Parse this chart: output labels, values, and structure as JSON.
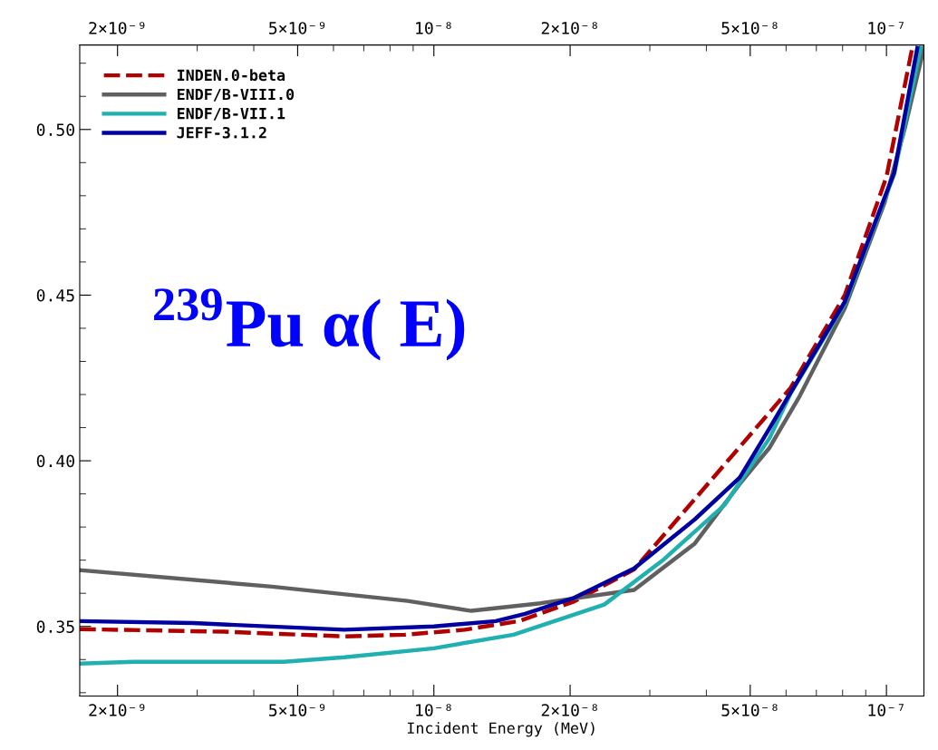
{
  "chart_data": {
    "type": "line",
    "xlabel": "Incident Energy (MeV)",
    "annotations": [
      "$^{239}$Pu α( E)"
    ],
    "log": "x",
    "grid": false,
    "legend": "top left",
    "marker": "none",
    "xlim": [
      1.65e-09,
      1.21e-07
    ],
    "xticks": [
      {
        "value": 2e-09,
        "label": "2×10⁻⁹"
      },
      {
        "value": 5e-09,
        "label": "5×10⁻⁹"
      },
      {
        "value": 1e-08,
        "label": "10⁻⁸"
      },
      {
        "value": 2e-08,
        "label": "2×10⁻⁸"
      },
      {
        "value": 5e-08,
        "label": "5×10⁻⁸"
      },
      {
        "value": 1e-07,
        "label": "10⁻⁷"
      }
    ],
    "ylim": [
      0.329,
      0.5255
    ],
    "yticks": [
      0.35,
      {
        "value": 0.4,
        "label": "0.40"
      },
      0.45,
      {
        "value": 0.5,
        "label": "0.50"
      }
    ],
    "series": [
      {
        "name": "INDEN.0-beta",
        "color": "#b00000",
        "line_style": "dashed",
        "x": [
          1.65e-09,
          3.44e-09,
          6.34e-09,
          8.63e-09,
          1.17e-08,
          1.54e-08,
          2.03e-08,
          2.77e-08,
          6.14e-08,
          8.09e-08,
          1e-07,
          1.14e-07
        ],
        "values": [
          0.3492,
          0.3484,
          0.347,
          0.3475,
          0.349,
          0.3516,
          0.3574,
          0.3672,
          0.422,
          0.45,
          0.4857,
          0.5246
        ]
      },
      {
        "name": "ENDF/B-VIII.0",
        "color": "#606060",
        "line_style": "solid",
        "x": [
          1.65e-09,
          4.39e-09,
          8.75e-09,
          1.21e-08,
          1.72e-08,
          2.77e-08,
          3.77e-08,
          4.74e-08,
          5.52e-08,
          6.43e-08,
          8.09e-08,
          9.91e-08,
          1.1e-07,
          1.21e-07
        ],
        "values": [
          0.367,
          0.362,
          0.3577,
          0.3547,
          0.357,
          0.361,
          0.375,
          0.393,
          0.404,
          0.4195,
          0.446,
          0.478,
          0.5008,
          0.5246
        ]
      },
      {
        "name": "ENDF/B-VII.1",
        "color": "#20b0b0",
        "line_style": "solid",
        "x": [
          1.65e-09,
          2.17e-09,
          4.66e-09,
          6.34e-09,
          1e-08,
          1.5e-08,
          2.38e-08,
          3.22e-08,
          4.39e-08,
          5.52e-08,
          6.14e-08,
          8.09e-08,
          1.04e-07,
          1.19e-07
        ],
        "values": [
          0.3388,
          0.3393,
          0.3393,
          0.3407,
          0.3434,
          0.3475,
          0.3566,
          0.3702,
          0.3867,
          0.4069,
          0.4203,
          0.4474,
          0.4865,
          0.5246
        ]
      },
      {
        "name": "JEFF-3.1.2",
        "color": "#0000a0",
        "line_style": "solid",
        "x": [
          1.65e-09,
          2.94e-09,
          6.34e-09,
          1e-08,
          1.37e-08,
          1.59e-08,
          2.03e-08,
          2.77e-08,
          3.77e-08,
          4.74e-08,
          5.45e-08,
          6.14e-08,
          8.09e-08,
          1.04e-07,
          1.17e-07
        ],
        "values": [
          0.3516,
          0.351,
          0.349,
          0.35,
          0.3516,
          0.3538,
          0.3585,
          0.3675,
          0.3823,
          0.3949,
          0.4086,
          0.4206,
          0.448,
          0.487,
          0.5246
        ]
      }
    ]
  }
}
